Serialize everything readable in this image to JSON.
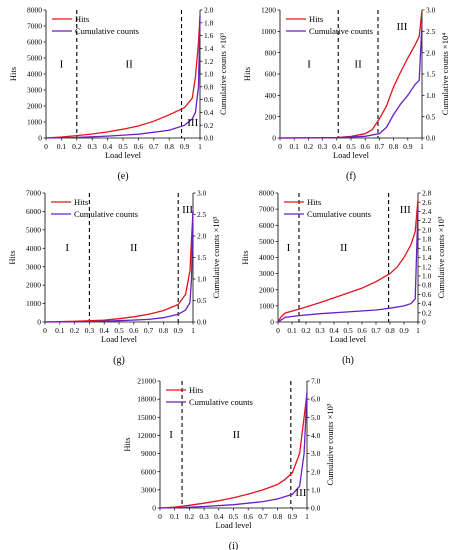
{
  "colors": {
    "hits": "#e0151b",
    "cumulative": "#6a1fc4",
    "divider": "#000000"
  },
  "chart_data": [
    {
      "panel_label": "(e)",
      "type": "line",
      "xlabel": "Load level",
      "ylabel": "Hits",
      "y2label": "Cumulative counts ×10³",
      "xlim": [
        0,
        1
      ],
      "ylim": [
        0,
        8000
      ],
      "y2lim": [
        0,
        2.0
      ],
      "xticks": [
        "0",
        "0.1",
        "0.2",
        "0.3",
        "0.4",
        "0.5",
        "0.6",
        "0.7",
        "0.8",
        "0.9",
        "1"
      ],
      "yticks": [
        "0",
        "1000",
        "2000",
        "3000",
        "4000",
        "5000",
        "6000",
        "7000",
        "8000"
      ],
      "y2ticks": [
        "0.0",
        "0.2",
        "0.4",
        "0.6",
        "0.8",
        "1.0",
        "1.2",
        "1.4",
        "1.6",
        "1.8",
        "2.0"
      ],
      "regions": [
        "I",
        "II",
        "III"
      ],
      "dividers": [
        0.2,
        0.88
      ],
      "legend": [
        "Hits",
        "Cumulative counts"
      ],
      "series": [
        {
          "name": "Hits",
          "axis": "left",
          "x": [
            0,
            0.1,
            0.2,
            0.3,
            0.4,
            0.5,
            0.6,
            0.7,
            0.8,
            0.9,
            0.95,
            0.97,
            0.99,
            1.0
          ],
          "y": [
            0,
            60,
            150,
            250,
            380,
            550,
            750,
            1050,
            1450,
            1900,
            2500,
            3800,
            6000,
            7600
          ]
        },
        {
          "name": "Cumulative counts",
          "axis": "right",
          "x": [
            0,
            0.2,
            0.4,
            0.6,
            0.8,
            0.9,
            0.95,
            0.97,
            0.99,
            1.0
          ],
          "y": [
            0,
            0.01,
            0.03,
            0.06,
            0.12,
            0.2,
            0.3,
            0.4,
            0.8,
            1.9
          ]
        }
      ]
    },
    {
      "panel_label": "(f)",
      "type": "line",
      "xlabel": "Load level",
      "ylabel": "Hits",
      "y2label": "Cumulative counts ×10⁴",
      "xlim": [
        0,
        1
      ],
      "ylim": [
        0,
        1200
      ],
      "y2lim": [
        0,
        3.0
      ],
      "xticks": [
        "0",
        "0.1",
        "0.2",
        "0.3",
        "0.4",
        "0.5",
        "0.6",
        "0.7",
        "0.8",
        "0.9",
        "1"
      ],
      "yticks": [
        "0",
        "200",
        "400",
        "600",
        "800",
        "1000",
        "1200"
      ],
      "y2ticks": [
        "0.0",
        "0.5",
        "1.0",
        "1.5",
        "2.0",
        "2.5",
        "3.0"
      ],
      "regions": [
        "I",
        "II",
        "III"
      ],
      "dividers": [
        0.41,
        0.69
      ],
      "legend": [
        "Hits",
        "Cumulative counts"
      ],
      "series": [
        {
          "name": "Hits",
          "axis": "left",
          "x": [
            0,
            0.3,
            0.4,
            0.5,
            0.6,
            0.65,
            0.7,
            0.75,
            0.8,
            0.85,
            0.9,
            0.95,
            0.98,
            1.0
          ],
          "y": [
            0,
            2,
            5,
            15,
            40,
            80,
            180,
            300,
            480,
            620,
            750,
            870,
            950,
            1200
          ]
        },
        {
          "name": "Cumulative counts",
          "axis": "right",
          "x": [
            0,
            0.4,
            0.6,
            0.7,
            0.75,
            0.8,
            0.85,
            0.9,
            0.95,
            0.98,
            1.0
          ],
          "y": [
            0,
            0.01,
            0.04,
            0.1,
            0.25,
            0.55,
            0.8,
            1.0,
            1.25,
            1.35,
            2.7
          ]
        }
      ]
    },
    {
      "panel_label": "(g)",
      "type": "line",
      "xlabel": "Load level",
      "ylabel": "Hits",
      "y2label": "Cumulative counts ×10³",
      "xlim": [
        0,
        1
      ],
      "ylim": [
        0,
        7000
      ],
      "y2lim": [
        0,
        3.0
      ],
      "xticks": [
        "0",
        "0.1",
        "0.2",
        "0.3",
        "0.4",
        "0.5",
        "0.6",
        "0.7",
        "0.8",
        "0.9",
        "1"
      ],
      "yticks": [
        "0",
        "1000",
        "2000",
        "3000",
        "4000",
        "5000",
        "6000",
        "7000"
      ],
      "y2ticks": [
        "0.0",
        "0.5",
        "1.0",
        "1.5",
        "2.0",
        "2.5",
        "3.0"
      ],
      "regions": [
        "I",
        "II",
        "III"
      ],
      "dividers": [
        0.3,
        0.9
      ],
      "legend": [
        "Hits",
        "Cumulative counts"
      ],
      "series": [
        {
          "name": "Hits",
          "axis": "left",
          "x": [
            0,
            0.2,
            0.4,
            0.5,
            0.6,
            0.7,
            0.8,
            0.9,
            0.95,
            0.98,
            0.99,
            1.0
          ],
          "y": [
            0,
            40,
            100,
            180,
            280,
            420,
            620,
            950,
            1500,
            2800,
            4500,
            6000
          ]
        },
        {
          "name": "Cumulative counts",
          "axis": "right",
          "x": [
            0,
            0.3,
            0.5,
            0.7,
            0.8,
            0.9,
            0.95,
            0.98,
            0.99,
            1.0
          ],
          "y": [
            0,
            0.01,
            0.03,
            0.06,
            0.1,
            0.18,
            0.28,
            0.45,
            1.0,
            2.6
          ]
        }
      ]
    },
    {
      "panel_label": "(h)",
      "type": "line",
      "xlabel": "Load level",
      "ylabel": "Hits",
      "y2label": "Cumulative counts ×10³",
      "xlim": [
        0,
        1
      ],
      "ylim": [
        0,
        8000
      ],
      "y2lim": [
        0,
        2.8
      ],
      "xticks": [
        "0",
        "0.1",
        "0.2",
        "0.3",
        "0.4",
        "0.5",
        "0.6",
        "0.7",
        "0.8",
        "0.9",
        "1"
      ],
      "yticks": [
        "0",
        "1000",
        "2000",
        "3000",
        "4000",
        "5000",
        "6000",
        "7000",
        "8000"
      ],
      "y2ticks": [
        "0",
        "0.2",
        "0.4",
        "0.6",
        "0.8",
        "1.0",
        "1.2",
        "1.4",
        "1.6",
        "1.8",
        "2.0",
        "2.2",
        "2.4",
        "2.6",
        "2.8"
      ],
      "regions": [
        "I",
        "II",
        "III"
      ],
      "dividers": [
        0.15,
        0.79
      ],
      "legend": [
        "Hits",
        "Cumulative counts"
      ],
      "series": [
        {
          "name": "Hits",
          "axis": "left",
          "x": [
            0,
            0.02,
            0.05,
            0.15,
            0.3,
            0.5,
            0.6,
            0.7,
            0.8,
            0.85,
            0.9,
            0.95,
            0.98,
            1.0
          ],
          "y": [
            0,
            300,
            550,
            800,
            1200,
            1800,
            2100,
            2500,
            3000,
            3400,
            4000,
            4800,
            5600,
            7600
          ]
        },
        {
          "name": "Cumulative counts",
          "axis": "right",
          "x": [
            0,
            0.05,
            0.15,
            0.3,
            0.5,
            0.7,
            0.8,
            0.9,
            0.95,
            0.98,
            1.0
          ],
          "y": [
            0,
            0.1,
            0.14,
            0.18,
            0.22,
            0.26,
            0.3,
            0.35,
            0.4,
            0.5,
            2.5
          ]
        }
      ]
    },
    {
      "panel_label": "(i)",
      "type": "line",
      "xlabel": "Load level",
      "ylabel": "Hits",
      "y2label": "Cumulative counts ×10³",
      "xlim": [
        0,
        1
      ],
      "ylim": [
        0,
        21000
      ],
      "y2lim": [
        0,
        7.0
      ],
      "xticks": [
        "0",
        "0.1",
        "0.2",
        "0.3",
        "0.4",
        "0.5",
        "0.6",
        "0.7",
        "0.8",
        "0.9",
        "1"
      ],
      "yticks": [
        "0",
        "3000",
        "6000",
        "9000",
        "12000",
        "15000",
        "18000",
        "21000"
      ],
      "y2ticks": [
        "0.0",
        "1.0",
        "2.0",
        "3.0",
        "4.0",
        "5.0",
        "6.0",
        "7.0"
      ],
      "regions": [
        "I",
        "II",
        "III"
      ],
      "dividers": [
        0.15,
        0.89
      ],
      "legend": [
        "Hits",
        "Cumulative counts"
      ],
      "series": [
        {
          "name": "Hits",
          "axis": "left",
          "x": [
            0,
            0.1,
            0.2,
            0.3,
            0.4,
            0.5,
            0.6,
            0.7,
            0.8,
            0.85,
            0.9,
            0.95,
            0.98,
            1.0
          ],
          "y": [
            0,
            150,
            450,
            800,
            1200,
            1700,
            2300,
            3000,
            3900,
            4700,
            5800,
            9000,
            15000,
            19000
          ]
        },
        {
          "name": "Cumulative counts",
          "axis": "right",
          "x": [
            0,
            0.15,
            0.3,
            0.5,
            0.7,
            0.8,
            0.9,
            0.95,
            0.98,
            1.0
          ],
          "y": [
            0,
            0.03,
            0.08,
            0.18,
            0.35,
            0.5,
            0.75,
            1.2,
            3.0,
            6.4
          ]
        }
      ]
    }
  ]
}
